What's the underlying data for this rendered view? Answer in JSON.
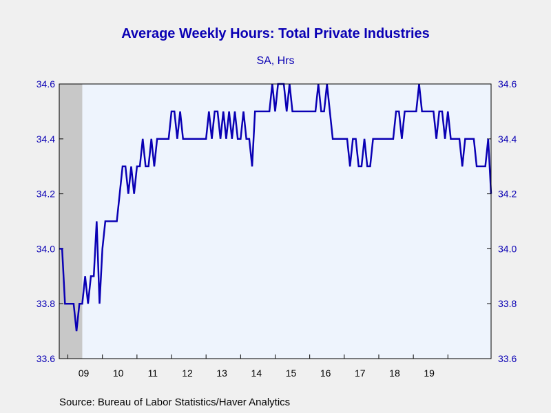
{
  "chart_data": {
    "type": "line",
    "title": "Average Weekly Hours: Total Private Industries",
    "subtitle": "SA, Hrs",
    "source": "Source:  Bureau of Labor Statistics/Haver Analytics",
    "xlabel": "",
    "ylabel": "",
    "ylim": [
      33.6,
      34.6
    ],
    "y_ticks": [
      "33.6",
      "33.8",
      "34.0",
      "34.2",
      "34.4",
      "34.6"
    ],
    "x_start": "2008-10",
    "x_end": "2020-02",
    "x_tick_labels": [
      "09",
      "10",
      "11",
      "12",
      "13",
      "14",
      "15",
      "16",
      "17",
      "18",
      "19"
    ],
    "recession_shading": {
      "start": "2008-10",
      "end": "2009-06"
    },
    "grid": false,
    "colors": {
      "line": "#0a00b4",
      "plot_bg": "#eef4fd",
      "recession": "#c8c8c8",
      "text": "#0a00b4"
    },
    "series": [
      {
        "values": [
          34.0,
          34.0,
          33.8,
          33.8,
          33.8,
          33.8,
          33.7,
          33.8,
          33.8,
          33.9,
          33.8,
          33.9,
          33.9,
          34.1,
          33.8,
          34.0,
          34.1,
          34.1,
          34.1,
          34.1,
          34.1,
          34.2,
          34.3,
          34.3,
          34.2,
          34.3,
          34.2,
          34.3,
          34.3,
          34.4,
          34.3,
          34.3,
          34.4,
          34.3,
          34.4,
          34.4,
          34.4,
          34.4,
          34.4,
          34.5,
          34.5,
          34.4,
          34.5,
          34.4,
          34.4,
          34.4,
          34.4,
          34.4,
          34.4,
          34.4,
          34.4,
          34.4,
          34.5,
          34.4,
          34.5,
          34.5,
          34.4,
          34.5,
          34.4,
          34.5,
          34.4,
          34.5,
          34.4,
          34.4,
          34.5,
          34.4,
          34.4,
          34.3,
          34.5,
          34.5,
          34.5,
          34.5,
          34.5,
          34.5,
          34.6,
          34.5,
          34.6,
          34.6,
          34.6,
          34.5,
          34.6,
          34.5,
          34.5,
          34.5,
          34.5,
          34.5,
          34.5,
          34.5,
          34.5,
          34.5,
          34.6,
          34.5,
          34.5,
          34.6,
          34.5,
          34.4,
          34.4,
          34.4,
          34.4,
          34.4,
          34.4,
          34.3,
          34.4,
          34.4,
          34.3,
          34.3,
          34.4,
          34.3,
          34.3,
          34.4,
          34.4,
          34.4,
          34.4,
          34.4,
          34.4,
          34.4,
          34.4,
          34.5,
          34.5,
          34.4,
          34.5,
          34.5,
          34.5,
          34.5,
          34.5,
          34.6,
          34.5,
          34.5,
          34.5,
          34.5,
          34.5,
          34.4,
          34.5,
          34.5,
          34.4,
          34.5,
          34.4,
          34.4,
          34.4,
          34.4,
          34.3,
          34.4,
          34.4,
          34.4,
          34.4,
          34.3,
          34.3,
          34.3,
          34.3,
          34.4,
          34.2
        ]
      }
    ]
  }
}
